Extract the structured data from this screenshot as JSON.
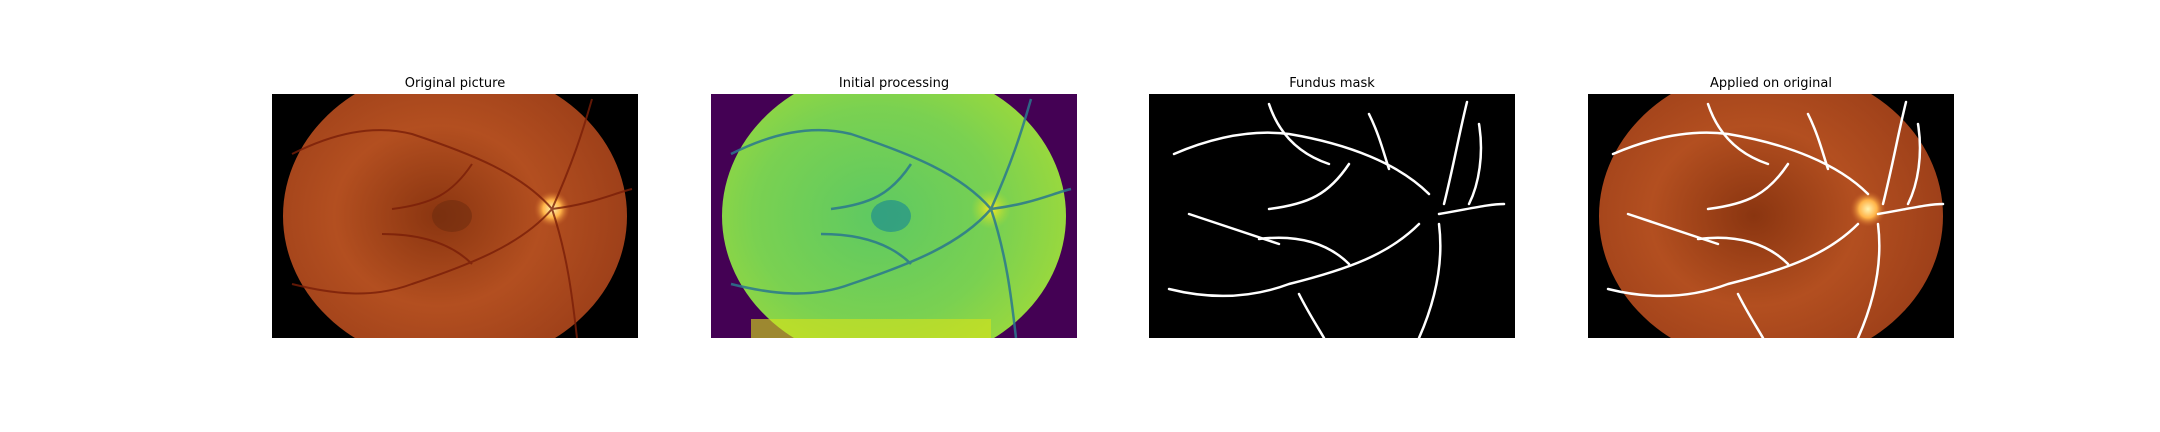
{
  "figure": {
    "panels": [
      {
        "id": "original",
        "title": "Original picture"
      },
      {
        "id": "initial",
        "title": "Initial processing"
      },
      {
        "id": "mask",
        "title": "Fundus mask"
      },
      {
        "id": "applied",
        "title": "Applied on original"
      }
    ]
  },
  "colors": {
    "background": "#ffffff",
    "retina_dark": "#6a2a0e",
    "retina_mid": "#a6461c",
    "retina_light": "#c25a26",
    "optic_disc": "#ffd27a",
    "viridis_purple": "#440154",
    "viridis_green": "#7ad151",
    "viridis_teal": "#21908d",
    "viridis_yellow": "#d8e219",
    "vessel_white": "#ffffff"
  }
}
